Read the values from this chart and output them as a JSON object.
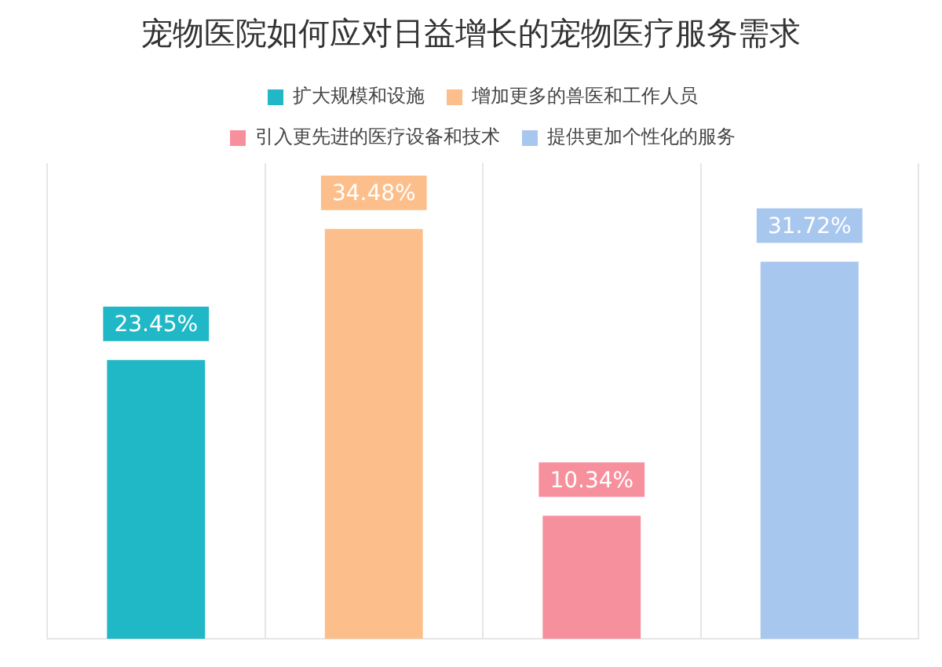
{
  "chart_data": {
    "type": "bar",
    "title": "宠物医院如何应对日益增长的宠物医疗服务需求",
    "categories": [
      null,
      null,
      null,
      null
    ],
    "series": [
      {
        "name": "扩大规模和设施",
        "color": "#20b8c6",
        "values": [
          23.45,
          null,
          null,
          null
        ],
        "value_labels": [
          "23.45%",
          null,
          null,
          null
        ]
      },
      {
        "name": "增加更多的兽医和工作人员",
        "color": "#fcbf8c",
        "values": [
          null,
          34.48,
          null,
          null
        ],
        "value_labels": [
          null,
          "34.48%",
          null,
          null
        ]
      },
      {
        "name": "引入更先进的医疗设备和技术",
        "color": "#f7909d",
        "values": [
          null,
          null,
          10.34,
          null
        ],
        "value_labels": [
          null,
          null,
          "10.34%",
          null
        ]
      },
      {
        "name": "提供更加个性化的服务",
        "color": "#a8c7ee",
        "values": [
          null,
          null,
          null,
          31.72
        ],
        "value_labels": [
          null,
          null,
          null,
          "31.72%"
        ]
      }
    ],
    "stacked": true,
    "tick_labels": false,
    "grid": "x",
    "legend": "top"
  }
}
